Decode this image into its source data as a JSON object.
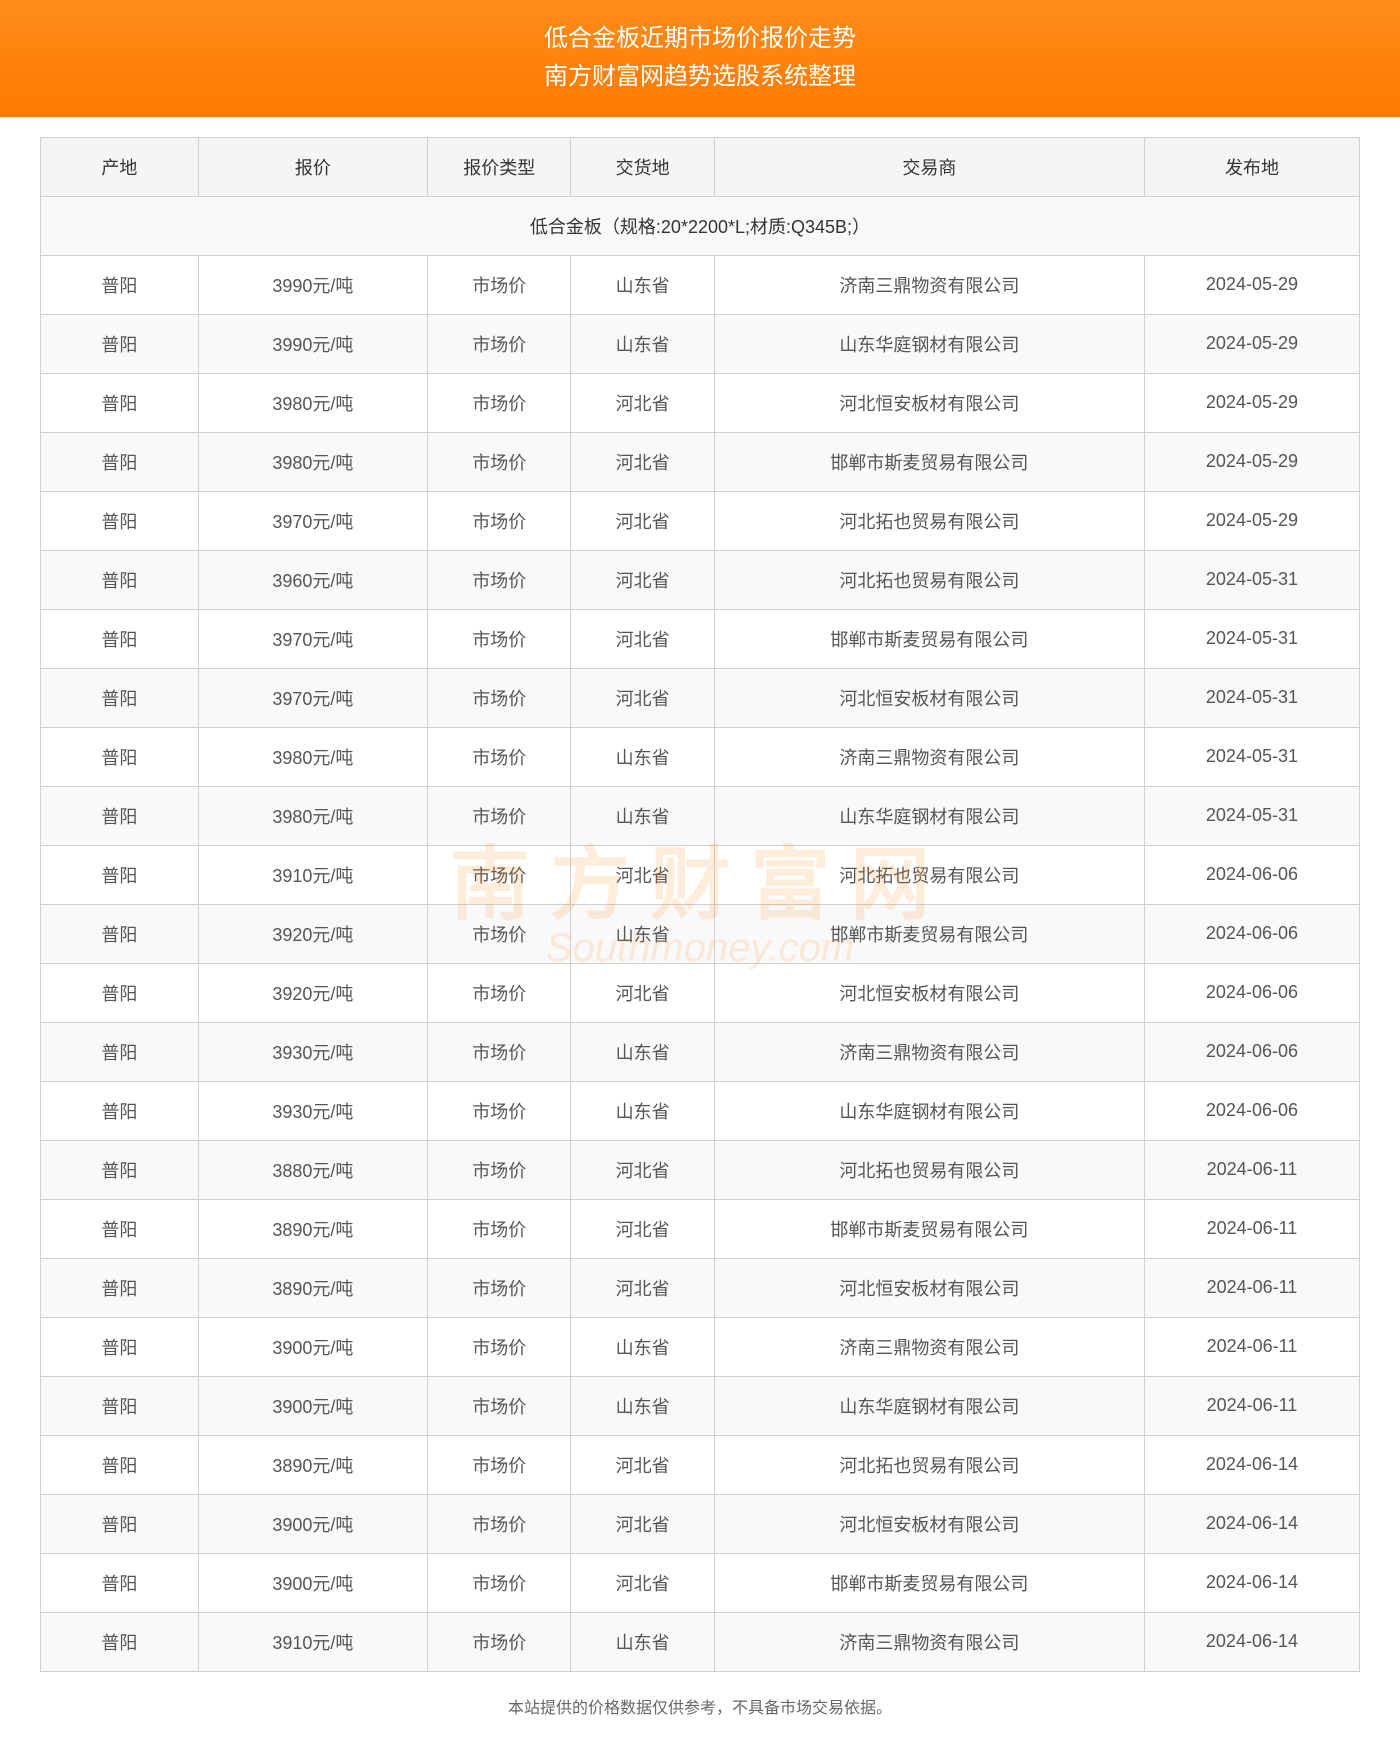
{
  "header": {
    "title_line1": "低合金板近期市场价报价走势",
    "title_line2": "南方财富网趋势选股系统整理"
  },
  "watermark": {
    "cn": "南方财富网",
    "en": "Southmoney.com"
  },
  "table": {
    "columns": [
      "产地",
      "报价",
      "报价类型",
      "交货地",
      "交易商",
      "发布地"
    ],
    "spec_label": "低合金板（规格:20*2200*L;材质:Q345B;）",
    "rows": [
      [
        "普阳",
        "3990元/吨",
        "市场价",
        "山东省",
        "济南三鼎物资有限公司",
        "2024-05-29"
      ],
      [
        "普阳",
        "3990元/吨",
        "市场价",
        "山东省",
        "山东华庭钢材有限公司",
        "2024-05-29"
      ],
      [
        "普阳",
        "3980元/吨",
        "市场价",
        "河北省",
        "河北恒安板材有限公司",
        "2024-05-29"
      ],
      [
        "普阳",
        "3980元/吨",
        "市场价",
        "河北省",
        "邯郸市斯麦贸易有限公司",
        "2024-05-29"
      ],
      [
        "普阳",
        "3970元/吨",
        "市场价",
        "河北省",
        "河北拓也贸易有限公司",
        "2024-05-29"
      ],
      [
        "普阳",
        "3960元/吨",
        "市场价",
        "河北省",
        "河北拓也贸易有限公司",
        "2024-05-31"
      ],
      [
        "普阳",
        "3970元/吨",
        "市场价",
        "河北省",
        "邯郸市斯麦贸易有限公司",
        "2024-05-31"
      ],
      [
        "普阳",
        "3970元/吨",
        "市场价",
        "河北省",
        "河北恒安板材有限公司",
        "2024-05-31"
      ],
      [
        "普阳",
        "3980元/吨",
        "市场价",
        "山东省",
        "济南三鼎物资有限公司",
        "2024-05-31"
      ],
      [
        "普阳",
        "3980元/吨",
        "市场价",
        "山东省",
        "山东华庭钢材有限公司",
        "2024-05-31"
      ],
      [
        "普阳",
        "3910元/吨",
        "市场价",
        "河北省",
        "河北拓也贸易有限公司",
        "2024-06-06"
      ],
      [
        "普阳",
        "3920元/吨",
        "市场价",
        "山东省",
        "邯郸市斯麦贸易有限公司",
        "2024-06-06"
      ],
      [
        "普阳",
        "3920元/吨",
        "市场价",
        "河北省",
        "河北恒安板材有限公司",
        "2024-06-06"
      ],
      [
        "普阳",
        "3930元/吨",
        "市场价",
        "山东省",
        "济南三鼎物资有限公司",
        "2024-06-06"
      ],
      [
        "普阳",
        "3930元/吨",
        "市场价",
        "山东省",
        "山东华庭钢材有限公司",
        "2024-06-06"
      ],
      [
        "普阳",
        "3880元/吨",
        "市场价",
        "河北省",
        "河北拓也贸易有限公司",
        "2024-06-11"
      ],
      [
        "普阳",
        "3890元/吨",
        "市场价",
        "河北省",
        "邯郸市斯麦贸易有限公司",
        "2024-06-11"
      ],
      [
        "普阳",
        "3890元/吨",
        "市场价",
        "河北省",
        "河北恒安板材有限公司",
        "2024-06-11"
      ],
      [
        "普阳",
        "3900元/吨",
        "市场价",
        "山东省",
        "济南三鼎物资有限公司",
        "2024-06-11"
      ],
      [
        "普阳",
        "3900元/吨",
        "市场价",
        "山东省",
        "山东华庭钢材有限公司",
        "2024-06-11"
      ],
      [
        "普阳",
        "3890元/吨",
        "市场价",
        "河北省",
        "河北拓也贸易有限公司",
        "2024-06-14"
      ],
      [
        "普阳",
        "3900元/吨",
        "市场价",
        "河北省",
        "河北恒安板材有限公司",
        "2024-06-14"
      ],
      [
        "普阳",
        "3900元/吨",
        "市场价",
        "河北省",
        "邯郸市斯麦贸易有限公司",
        "2024-06-14"
      ],
      [
        "普阳",
        "3910元/吨",
        "市场价",
        "山东省",
        "济南三鼎物资有限公司",
        "2024-06-14"
      ]
    ]
  },
  "footer": {
    "disclaimer": "本站提供的价格数据仅供参考，不具备市场交易依据。"
  },
  "styling": {
    "header_bg_start": "#ff8c1a",
    "header_bg_end": "#ff7a00",
    "header_text_color": "#ffffff",
    "header_font_size": 24,
    "th_bg": "#f5f5f5",
    "th_text_color": "#333333",
    "border_color": "#d0d0d0",
    "row_odd_bg": "#f9f9f9",
    "row_even_bg": "#ffffff",
    "cell_text_color": "#555555",
    "cell_font_size": 18,
    "footer_text_color": "#666666",
    "footer_font_size": 16,
    "watermark_color": "#ff8c1a",
    "watermark_opacity": 0.15,
    "column_widths_pct": [
      11,
      16,
      10,
      10,
      30,
      15
    ]
  }
}
